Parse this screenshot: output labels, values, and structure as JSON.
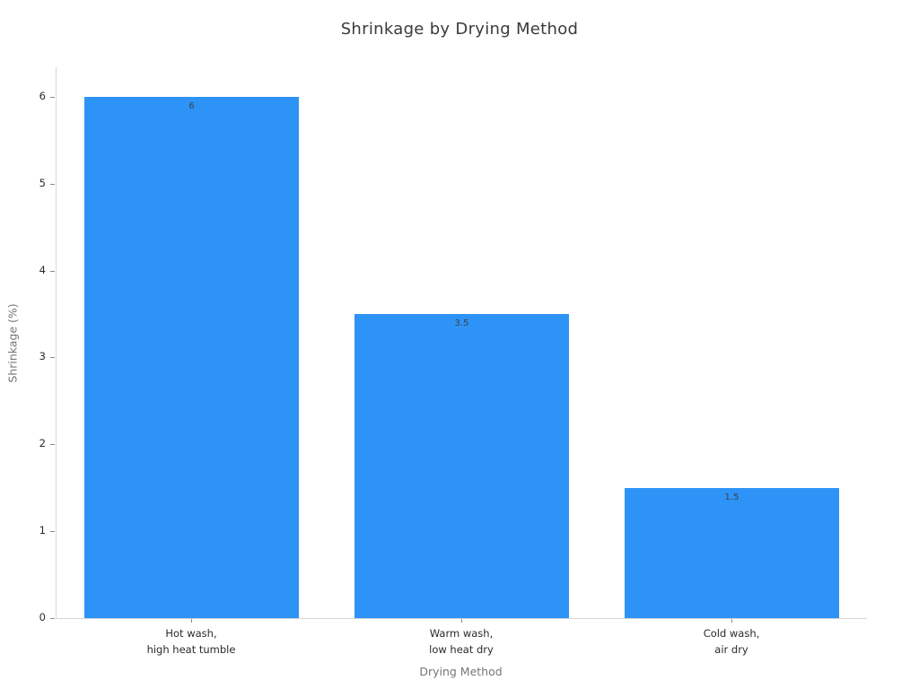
{
  "chart_data": {
    "type": "bar",
    "title": "Shrinkage by Drying Method",
    "xlabel": "Drying Method",
    "ylabel": "Shrinkage (%)",
    "categories": [
      "Hot wash,\nhigh heat tumble",
      "Warm wash,\nlow heat dry",
      "Cold wash,\nair dry"
    ],
    "values": [
      6,
      3.5,
      1.5
    ],
    "value_labels": [
      "6",
      "3.5",
      "1.5"
    ],
    "yticks": [
      0,
      1,
      2,
      3,
      4,
      5,
      6
    ],
    "ylim": [
      0,
      6.34
    ],
    "grid": false,
    "legend": null,
    "bar_color": "#2E93F6",
    "title_color": "#3a3a3a",
    "axis_title_color": "#767676",
    "tick_label_color": "#2b2b2b"
  }
}
